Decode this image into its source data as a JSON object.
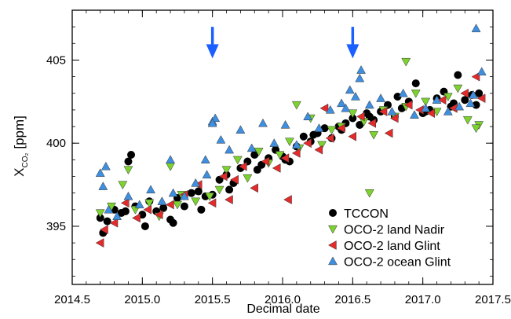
{
  "chart_data": {
    "type": "scatter",
    "title": "",
    "xlabel": "Decimal date",
    "ylabel": "X",
    "ylabel_sub": "CO₂",
    "ylabel_unit": "[ppm]",
    "xlim": [
      2014.5,
      2017.5
    ],
    "ylim": [
      391.5,
      408.0
    ],
    "xticks": [
      2014.5,
      2015.0,
      2015.5,
      2016.0,
      2016.5,
      2017.0,
      2017.5
    ],
    "xtick_labels": [
      "2014.5",
      "2015.0",
      "2015.5",
      "2016.0",
      "2016.5",
      "2017.0",
      "2017.5"
    ],
    "yticks": [
      395,
      400,
      405
    ],
    "ytick_labels": [
      "395",
      "400",
      "405"
    ],
    "grid": false,
    "legend_position": "bottom-right",
    "annotations": [
      {
        "type": "arrow",
        "x": 2015.5,
        "y_from": 407.0,
        "y_to": 405.1,
        "color": "#1a5fff"
      },
      {
        "type": "arrow",
        "x": 2016.5,
        "y_from": 407.0,
        "y_to": 405.1,
        "color": "#1a5fff"
      }
    ],
    "series": [
      {
        "name": "TCCON",
        "marker": "circle",
        "color": "#000000",
        "x": [
          2014.7,
          2014.75,
          2014.8,
          2014.85,
          2014.9,
          2014.92,
          2014.95,
          2015.0,
          2015.05,
          2015.1,
          2015.15,
          2015.2,
          2015.25,
          2015.3,
          2015.35,
          2015.4,
          2015.45,
          2015.5,
          2015.55,
          2015.6,
          2015.65,
          2015.7,
          2015.75,
          2015.8,
          2015.85,
          2015.9,
          2015.95,
          2016.0,
          2016.05,
          2016.1,
          2016.15,
          2016.2,
          2016.25,
          2016.3,
          2016.35,
          2016.4,
          2016.45,
          2016.5,
          2016.55,
          2016.6,
          2016.65,
          2016.7,
          2016.75,
          2016.8,
          2016.85,
          2016.9,
          2016.95,
          2017.0,
          2017.05,
          2017.1,
          2017.15,
          2017.2,
          2017.25,
          2017.3,
          2017.35,
          2017.4,
          2014.72,
          2014.88,
          2015.02,
          2015.22,
          2015.42,
          2015.62,
          2015.82,
          2016.02,
          2016.22,
          2016.42,
          2016.62,
          2016.82,
          2017.02,
          2017.22,
          2017.38
        ],
        "y": [
          395.5,
          395.3,
          396.0,
          395.8,
          398.9,
          399.3,
          396.2,
          395.7,
          396.5,
          395.9,
          396.1,
          395.4,
          396.7,
          396.2,
          397.0,
          397.1,
          396.8,
          396.9,
          397.8,
          398.1,
          397.6,
          398.5,
          398.9,
          399.3,
          398.7,
          399.1,
          399.6,
          399.2,
          398.9,
          399.8,
          400.4,
          400.1,
          400.6,
          400.9,
          400.3,
          401.0,
          401.2,
          401.5,
          401.1,
          401.8,
          401.4,
          401.9,
          402.3,
          401.6,
          402.1,
          402.5,
          403.6,
          401.8,
          402.0,
          402.7,
          403.1,
          402.2,
          404.1,
          402.6,
          402.9,
          403.0,
          394.6,
          395.9,
          395.0,
          395.2,
          396.0,
          397.2,
          398.4,
          399.0,
          400.5,
          400.8,
          401.6,
          402.8,
          401.9,
          402.4,
          402.3
        ]
      },
      {
        "name": "OCO-2 land Nadir",
        "marker": "triangle-down",
        "color": "#7cd22e",
        "x": [
          2014.7,
          2014.78,
          2014.86,
          2014.95,
          2015.05,
          2015.12,
          2015.2,
          2015.28,
          2015.38,
          2015.48,
          2015.55,
          2015.6,
          2015.68,
          2015.75,
          2015.83,
          2015.9,
          2015.98,
          2016.05,
          2016.12,
          2016.2,
          2016.28,
          2016.35,
          2016.42,
          2016.5,
          2016.58,
          2016.65,
          2016.72,
          2016.8,
          2016.88,
          2016.95,
          2017.02,
          2017.1,
          2017.18,
          2017.25,
          2017.32,
          2017.4,
          2014.9,
          2015.25,
          2016.1,
          2016.88,
          2017.38,
          2016.62
        ],
        "y": [
          395.8,
          396.2,
          397.5,
          396.0,
          396.4,
          395.6,
          398.6,
          396.9,
          396.5,
          396.8,
          397.2,
          398.4,
          399.0,
          397.9,
          399.5,
          398.8,
          399.3,
          400.1,
          399.7,
          401.5,
          399.9,
          400.8,
          401.0,
          401.8,
          401.3,
          400.5,
          402.0,
          401.6,
          402.2,
          403.0,
          402.5,
          401.9,
          402.8,
          403.3,
          401.4,
          401.1,
          398.4,
          396.3,
          402.3,
          404.9,
          400.9,
          397.0
        ]
      },
      {
        "name": "OCO-2 land Glint",
        "marker": "triangle-left",
        "color": "#e32b2b",
        "x": [
          2014.7,
          2014.73,
          2014.8,
          2014.88,
          2014.96,
          2015.04,
          2015.12,
          2015.2,
          2015.3,
          2015.4,
          2015.5,
          2015.58,
          2015.66,
          2015.72,
          2015.8,
          2015.88,
          2015.96,
          2016.04,
          2016.1,
          2016.18,
          2016.26,
          2016.34,
          2016.42,
          2016.5,
          2016.56,
          2016.64,
          2016.72,
          2016.8,
          2016.9,
          2016.98,
          2017.06,
          2017.14,
          2017.22,
          2017.3,
          2017.38,
          2017.42,
          2016.02,
          2016.76,
          2015.62,
          2016.3
        ],
        "y": [
          394.0,
          394.8,
          395.2,
          396.4,
          395.5,
          396.0,
          395.7,
          396.3,
          396.9,
          397.5,
          396.4,
          398.0,
          397.8,
          398.6,
          397.3,
          398.9,
          398.5,
          396.6,
          399.4,
          400.0,
          399.6,
          400.3,
          400.9,
          400.4,
          401.6,
          401.2,
          401.9,
          401.5,
          402.3,
          402.0,
          401.8,
          402.6,
          402.1,
          403.0,
          404.0,
          402.7,
          399.1,
          400.6,
          396.6,
          402.1
        ]
      },
      {
        "name": "OCO-2 ocean Glint",
        "marker": "triangle-up",
        "color": "#3f8fe0",
        "x": [
          2014.7,
          2014.72,
          2014.76,
          2014.82,
          2014.9,
          2014.98,
          2015.06,
          2015.14,
          2015.22,
          2015.3,
          2015.38,
          2015.45,
          2015.5,
          2015.52,
          2015.56,
          2015.62,
          2015.7,
          2015.78,
          2015.86,
          2015.94,
          2016.02,
          2016.1,
          2016.18,
          2016.26,
          2016.34,
          2016.42,
          2016.48,
          2016.52,
          2016.56,
          2016.62,
          2016.7,
          2016.78,
          2016.86,
          2016.94,
          2017.02,
          2017.1,
          2017.18,
          2017.26,
          2017.34,
          2017.38,
          2017.42,
          2015.5,
          2015.46,
          2016.55,
          2016.45,
          2017.36,
          2015.2,
          2014.74
        ],
        "y": [
          398.2,
          397.4,
          396.0,
          395.6,
          396.8,
          396.3,
          397.2,
          396.5,
          397.0,
          396.8,
          397.6,
          399.0,
          401.3,
          401.5,
          400.2,
          399.6,
          400.8,
          399.7,
          401.2,
          400.0,
          401.1,
          399.9,
          401.6,
          400.9,
          402.0,
          402.4,
          403.2,
          402.8,
          404.4,
          402.3,
          402.7,
          401.9,
          403.0,
          401.7,
          402.1,
          402.6,
          401.9,
          402.2,
          402.4,
          406.9,
          404.3,
          401.2,
          398.1,
          403.9,
          402.1,
          402.9,
          399.0,
          398.6
        ]
      }
    ]
  }
}
